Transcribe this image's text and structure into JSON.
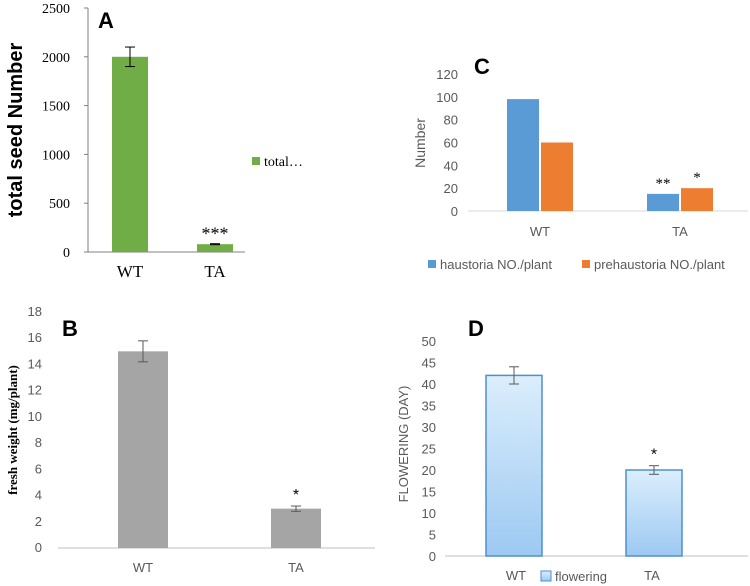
{
  "chart_data": [
    {
      "panel": "A",
      "type": "bar",
      "categories": [
        "WT",
        "TA"
      ],
      "values": [
        2000,
        80
      ],
      "errors": [
        100,
        5
      ],
      "significance": [
        "",
        "***"
      ],
      "ylabel": "total seed Number",
      "yticks": [
        0,
        500,
        1000,
        1500,
        2000,
        2500
      ],
      "ylim": [
        0,
        2500
      ],
      "legend": [
        "total…"
      ],
      "colors": {
        "bar": "#70ad47",
        "axis": "#808080"
      }
    },
    {
      "panel": "B",
      "type": "bar",
      "categories": [
        "WT",
        "TA"
      ],
      "values": [
        15,
        3
      ],
      "errors": [
        0.8,
        0.2
      ],
      "significance": [
        "",
        "*"
      ],
      "ylabel": "fresh weight (mg/plant)",
      "yticks": [
        0,
        2,
        4,
        6,
        8,
        10,
        12,
        14,
        16,
        18
      ],
      "ylim": [
        0,
        18
      ],
      "colors": {
        "bar": "#a5a5a5",
        "axis": "#bfbfbf"
      }
    },
    {
      "panel": "C",
      "type": "bar",
      "categories": [
        "WT",
        "TA"
      ],
      "series": [
        {
          "name": "haustoria NO./plant",
          "values": [
            98,
            15
          ],
          "color": "#5b9bd5"
        },
        {
          "name": "prehaustoria NO./plant",
          "values": [
            60,
            20
          ],
          "color": "#ed7d31"
        }
      ],
      "significance": [
        [
          "",
          ""
        ],
        [
          "**",
          "*"
        ]
      ],
      "ylabel": "Number",
      "yticks": [
        0,
        20,
        40,
        60,
        80,
        100,
        120
      ],
      "ylim": [
        0,
        120
      ],
      "colors": {
        "axis": "#d9d9d9"
      }
    },
    {
      "panel": "D",
      "type": "bar",
      "categories": [
        "WT",
        "TA"
      ],
      "values": [
        42,
        20
      ],
      "errors": [
        2,
        1
      ],
      "significance": [
        "",
        "*"
      ],
      "ylabel": "FLOWERING (DAY)",
      "yticks": [
        0,
        5,
        10,
        15,
        20,
        25,
        30,
        35,
        40,
        45,
        50
      ],
      "ylim": [
        0,
        50
      ],
      "legend": [
        "flowering"
      ],
      "colors": {
        "bar_top": "#dbeefc",
        "bar_bottom": "#9dc9f2",
        "bar_border": "#4f8fcf",
        "axis": "#bfbfbf"
      }
    }
  ]
}
